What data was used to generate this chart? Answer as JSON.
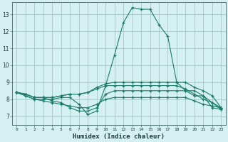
{
  "title": "",
  "xlabel": "Humidex (Indice chaleur)",
  "ylabel": "",
  "bg_color": "#d4f0f0",
  "grid_color": "#aacccc",
  "line_color": "#1a7a6a",
  "xlim": [
    -0.5,
    23.5
  ],
  "ylim": [
    6.5,
    13.7
  ],
  "xticks": [
    0,
    1,
    2,
    3,
    4,
    5,
    6,
    7,
    8,
    9,
    10,
    11,
    12,
    13,
    14,
    15,
    16,
    17,
    18,
    19,
    20,
    21,
    22,
    23
  ],
  "yticks": [
    7,
    8,
    9,
    10,
    11,
    12,
    13
  ],
  "lines": [
    [
      8.4,
      8.2,
      8.0,
      8.0,
      8.0,
      8.1,
      8.1,
      7.7,
      7.1,
      7.3,
      8.8,
      10.6,
      12.5,
      13.4,
      13.3,
      13.3,
      12.4,
      11.7,
      9.0,
      8.5,
      8.2,
      8.2,
      7.5,
      7.4
    ],
    [
      8.4,
      8.3,
      8.1,
      8.1,
      7.9,
      7.8,
      7.5,
      7.3,
      7.3,
      7.5,
      8.3,
      8.5,
      8.5,
      8.5,
      8.5,
      8.5,
      8.5,
      8.5,
      8.5,
      8.5,
      8.5,
      8.2,
      7.8,
      7.4
    ],
    [
      8.4,
      8.3,
      8.1,
      8.1,
      8.1,
      8.2,
      8.3,
      8.3,
      8.4,
      8.7,
      8.9,
      9.0,
      9.0,
      9.0,
      9.0,
      9.0,
      9.0,
      9.0,
      9.0,
      9.0,
      8.7,
      8.5,
      8.2,
      7.5
    ],
    [
      8.4,
      8.3,
      8.1,
      8.1,
      8.1,
      8.2,
      8.3,
      8.3,
      8.4,
      8.6,
      8.8,
      8.8,
      8.8,
      8.8,
      8.8,
      8.8,
      8.8,
      8.8,
      8.8,
      8.6,
      8.3,
      8.0,
      7.8,
      7.5
    ],
    [
      8.4,
      8.2,
      8.0,
      7.9,
      7.8,
      7.7,
      7.6,
      7.5,
      7.5,
      7.7,
      8.0,
      8.1,
      8.1,
      8.1,
      8.1,
      8.1,
      8.1,
      8.1,
      8.1,
      8.1,
      7.9,
      7.7,
      7.6,
      7.5
    ]
  ]
}
